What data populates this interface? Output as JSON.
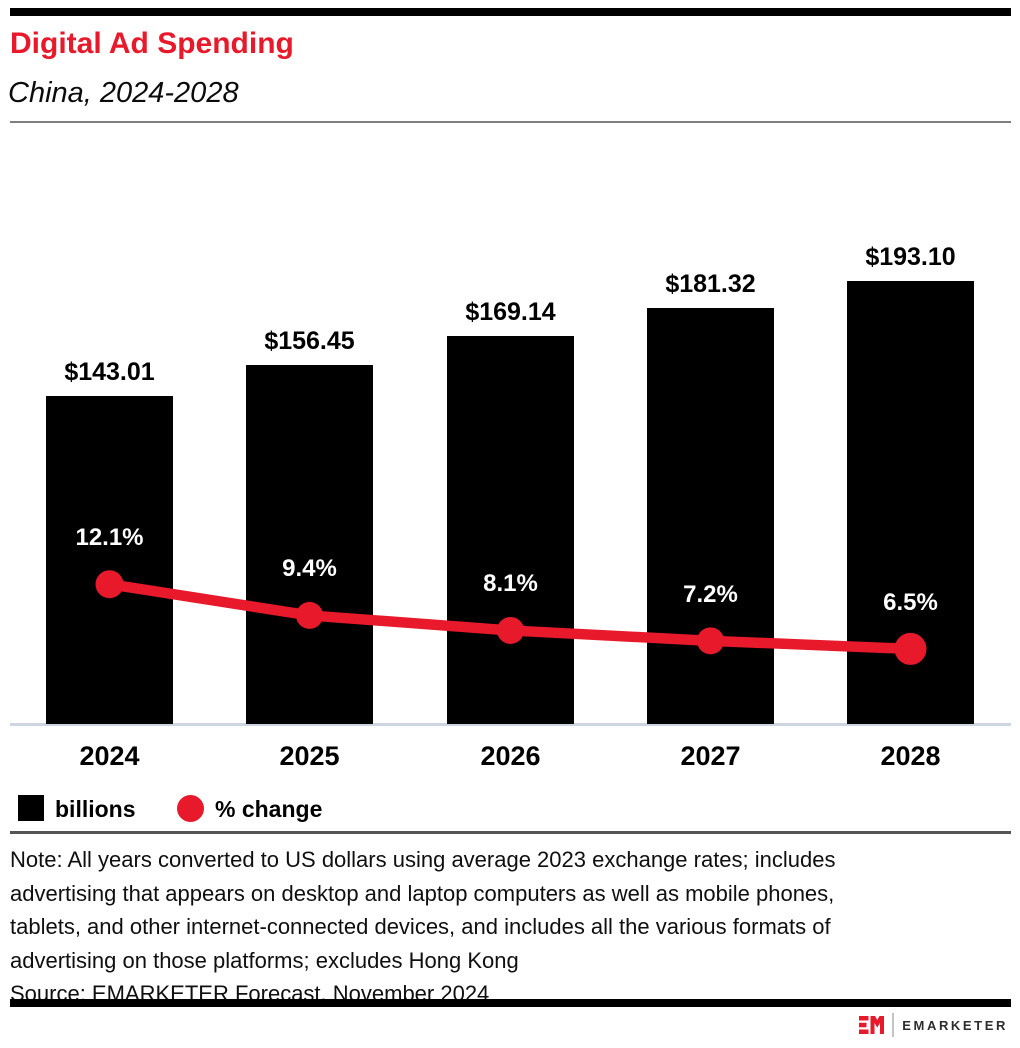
{
  "theme": {
    "accent_red": "#e8192b",
    "bar_black": "#000000",
    "axis_line_color": "#ccd5e0",
    "header_rule_color": "#7f7f7f",
    "note_divider_color": "#555555"
  },
  "header": {
    "title": "Digital Ad Spending",
    "subtitle": "China, 2024-2028"
  },
  "chart_data": {
    "type": "bar",
    "title": "Digital Ad Spending",
    "subtitle": "China, 2024-2028",
    "categories": [
      "2024",
      "2025",
      "2026",
      "2027",
      "2028"
    ],
    "series": [
      {
        "name": "billions",
        "type": "bar",
        "color": "#000000",
        "values": [
          143.01,
          156.45,
          169.14,
          181.32,
          193.1
        ],
        "value_labels": [
          "$143.01",
          "$156.45",
          "$169.14",
          "$181.32",
          "$193.10"
        ]
      },
      {
        "name": "% change",
        "type": "line",
        "color": "#e8192b",
        "values": [
          12.1,
          9.4,
          8.1,
          7.2,
          6.5
        ],
        "value_labels": [
          "12.1%",
          "9.4%",
          "8.1%",
          "7.2%",
          "6.5%"
        ]
      }
    ],
    "xlabel": "",
    "ylabel": "",
    "bar_axis_range": [
      0,
      215
    ],
    "line_axis_range": [
      0,
      14
    ],
    "grid": false,
    "y_axis_ticks_shown": false,
    "legend_position": "bottom-left"
  },
  "legend": {
    "items": [
      {
        "label": "billions",
        "swatch": "square",
        "color": "#000000"
      },
      {
        "label": "% change",
        "swatch": "circle",
        "color": "#e8192b"
      }
    ]
  },
  "note": {
    "lines": [
      "Note: All years converted to US dollars using average 2023 exchange rates; includes",
      "advertising that appears on desktop and laptop computers as well as mobile phones,",
      "tablets, and other internet-connected devices, and includes all the various formats of",
      "advertising on those platforms; excludes Hong Kong"
    ],
    "source": "Source: EMARKETER Forecast, November 2024"
  },
  "footer": {
    "logo_mark": "EM",
    "brand": "EMARKETER"
  }
}
